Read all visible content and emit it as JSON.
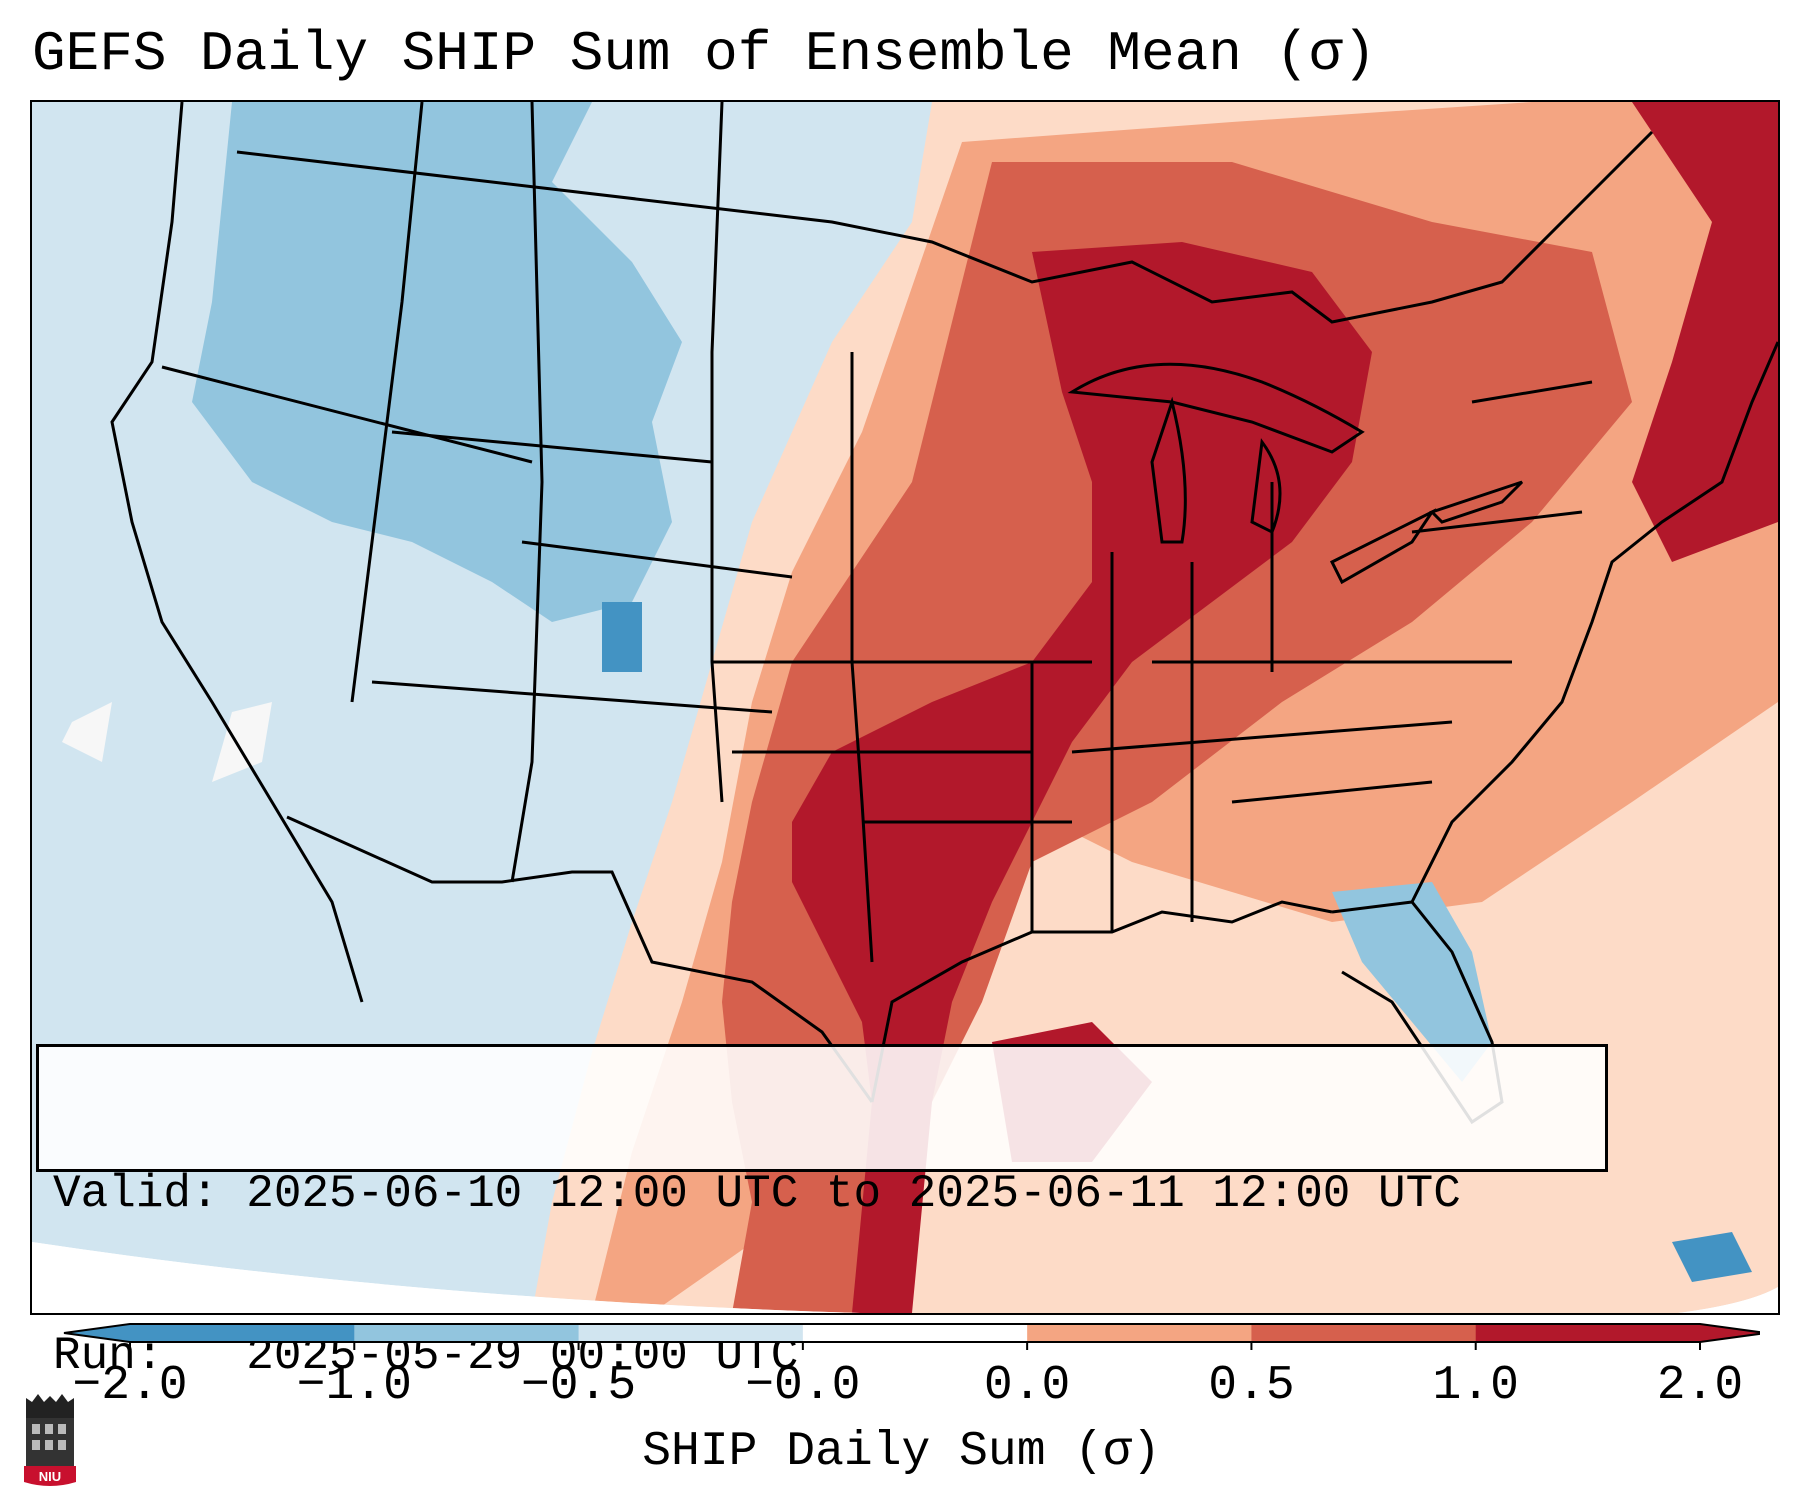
{
  "title": "GEFS Daily SHIP Sum of Ensemble Mean (σ)",
  "info": {
    "valid_line": "Valid: 2025-06-10 12:00 UTC to 2025-06-11 12:00 UTC",
    "run_line": "Run:   2025-05-29 00:00 UTC"
  },
  "colorbar": {
    "label": "SHIP Daily Sum (σ)",
    "ticks": [
      "−2.0",
      "−1.0",
      "−0.5",
      "−0.0",
      "0.0",
      "0.5",
      "1.0",
      "2.0"
    ],
    "colors": [
      "#4393c3",
      "#92c5de",
      "#d1e5f0",
      "#f7f7f7",
      "#fddbc7",
      "#f4a582",
      "#d6604d",
      "#b2182b"
    ],
    "extend": "both"
  },
  "logo": {
    "text": "NIU"
  },
  "map": {
    "region": "Contiguous United States",
    "pattern": [
      {
        "area": "West / Pacific Northwest / Rockies",
        "category": "-1.0 to -0.5"
      },
      {
        "area": "Southwest / Great Basin",
        "category": "-0.5 to -0.0"
      },
      {
        "area": "Central Plains / Midwest / Great Lakes",
        "category": "1.0 to 2.0"
      },
      {
        "area": "Gulf Coast / Texas",
        "category": "0.5 to 2.0"
      },
      {
        "area": "Southeast / Mid-Atlantic",
        "category": "0.0 to 0.5"
      },
      {
        "area": "Florida",
        "category": "-1.0 to -0.5"
      },
      {
        "area": "Northeast",
        "category": "0.5 to 2.0"
      }
    ]
  }
}
